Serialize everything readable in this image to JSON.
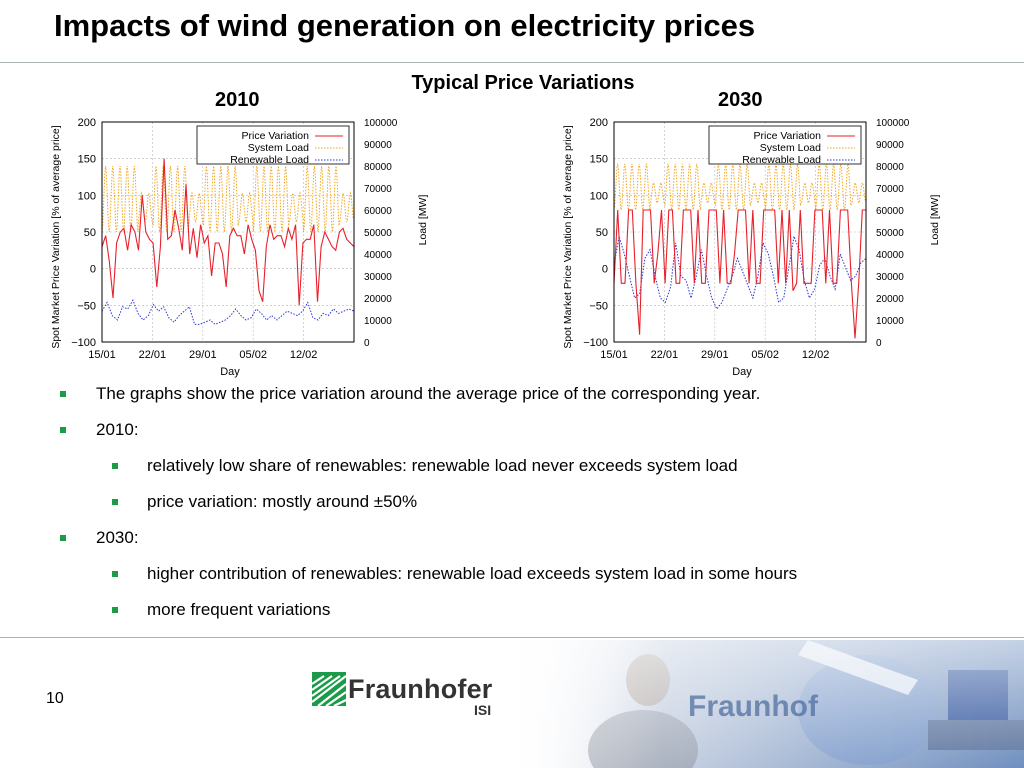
{
  "slide": {
    "title": "Impacts of wind generation on electricity prices",
    "figure_heading": "Typical Price Variations",
    "page_number": "10"
  },
  "logo": {
    "name": "Fraunhofer",
    "sub": "ISI"
  },
  "photo": {
    "overlay_word": "Fraunhof"
  },
  "bullets": [
    {
      "level": 1,
      "text": "The graphs show the price variation around the average price of the corresponding year."
    },
    {
      "level": 1,
      "text": "2010:"
    },
    {
      "level": 2,
      "text": "relatively low share of renewables: renewable load never exceeds system load"
    },
    {
      "level": 2,
      "text": "price variation: mostly around ±50%"
    },
    {
      "level": 1,
      "text": "2030:"
    },
    {
      "level": 2,
      "text": "higher contribution of renewables: renewable load exceeds system load in some hours"
    },
    {
      "level": 2,
      "text": "more frequent variations"
    }
  ],
  "colors": {
    "price": "#e8202a",
    "system_load": "#f2a51c",
    "renewable": "#2a35d6",
    "bullet": "#1b9a49",
    "logo": "#1b9a49"
  },
  "chart_data": [
    {
      "type": "line",
      "title": "2010",
      "xlabel": "Day",
      "ylabel": "Spot Market Price Variation [% of average price]",
      "y2label": "Load [MW]",
      "x_ticks": [
        "15/01",
        "22/01",
        "29/01",
        "05/02",
        "12/02"
      ],
      "x_range_days": [
        0,
        35
      ],
      "ylim": [
        -100,
        200
      ],
      "y_ticks": [
        "200",
        "150",
        "100",
        "50",
        "0",
        "−50",
        "−100"
      ],
      "y2lim": [
        0,
        100000
      ],
      "y2_ticks": [
        "100000",
        "90000",
        "80000",
        "70000",
        "60000",
        "50000",
        "40000",
        "30000",
        "20000",
        "10000",
        "0"
      ],
      "legend_position": "top-right",
      "series": [
        {
          "name": "Price Variation",
          "axis": "left",
          "style": "solid",
          "key": "price",
          "values": [
            30,
            45,
            10,
            -40,
            35,
            50,
            55,
            25,
            60,
            50,
            25,
            100,
            50,
            40,
            35,
            -25,
            30,
            150,
            40,
            45,
            80,
            55,
            25,
            115,
            20,
            55,
            15,
            60,
            35,
            45,
            -10,
            35,
            35,
            20,
            -25,
            45,
            55,
            45,
            45,
            20,
            60,
            40,
            25,
            -30,
            -45,
            30,
            60,
            40,
            45,
            45,
            30,
            55,
            40,
            60,
            -50,
            35,
            40,
            40,
            60,
            -45,
            30,
            50,
            40,
            30,
            25,
            50,
            55,
            40,
            35,
            30
          ]
        },
        {
          "name": "System Load",
          "axis": "right",
          "style": "dotted",
          "key": "system",
          "load_band_mw": [
            50000,
            80000
          ],
          "days_per_cycle": 1
        },
        {
          "name": "Renewable Load",
          "axis": "right",
          "style": "dotted",
          "key": "renew",
          "values": [
            14000,
            18000,
            12000,
            10000,
            16000,
            15000,
            19000,
            13000,
            10000,
            12000,
            17000,
            14000,
            16000,
            11000,
            9000,
            12000,
            14000,
            16000,
            8000,
            8000,
            9000,
            10000,
            8000,
            9000,
            10000,
            12000,
            15000,
            12000,
            10000,
            11000,
            15000,
            13000,
            10000,
            12000,
            10000,
            12000,
            14000,
            13000,
            12000,
            14000,
            18000,
            11000,
            10000,
            13000,
            12000,
            15000,
            13000,
            14000,
            15000,
            14000
          ]
        }
      ]
    },
    {
      "type": "line",
      "title": "2030",
      "xlabel": "Day",
      "ylabel": "Spot Market Price Variation [% of average price]",
      "y2label": "Load [MW]",
      "x_ticks": [
        "15/01",
        "22/01",
        "29/01",
        "05/02",
        "12/02"
      ],
      "x_range_days": [
        0,
        35
      ],
      "ylim": [
        -100,
        200
      ],
      "y_ticks": [
        "200",
        "150",
        "100",
        "50",
        "0",
        "−50",
        "−100"
      ],
      "y2lim": [
        0,
        100000
      ],
      "y2_ticks": [
        "100000",
        "90000",
        "80000",
        "70000",
        "60000",
        "50000",
        "40000",
        "30000",
        "20000",
        "10000",
        "0"
      ],
      "legend_position": "top-right",
      "series": [
        {
          "name": "Price Variation",
          "axis": "left",
          "style": "solid",
          "key": "price",
          "values": [
            -20,
            80,
            -20,
            -20,
            80,
            80,
            -20,
            -90,
            80,
            80,
            80,
            -20,
            20,
            80,
            -20,
            80,
            80,
            -20,
            -20,
            80,
            80,
            80,
            -20,
            80,
            -20,
            -20,
            80,
            80,
            80,
            -20,
            80,
            -20,
            -20,
            20,
            80,
            80,
            80,
            -20,
            80,
            -20,
            -20,
            80,
            80,
            80,
            80,
            -20,
            80,
            -20,
            80,
            -30,
            -20,
            80,
            -20,
            -20,
            -20,
            80,
            80,
            80,
            -20,
            80,
            -20,
            -20,
            80,
            80,
            80,
            -20,
            -95,
            -20,
            80,
            80
          ]
        },
        {
          "name": "System Load",
          "axis": "right",
          "style": "dotted",
          "key": "system",
          "load_band_mw": [
            60000,
            81000
          ],
          "days_per_cycle": 1
        },
        {
          "name": "Renewable Load",
          "axis": "right",
          "style": "dotted",
          "key": "renew",
          "values": [
            35000,
            48000,
            40000,
            30000,
            20000,
            22000,
            38000,
            42000,
            30000,
            20000,
            18000,
            25000,
            45000,
            30000,
            28000,
            20000,
            30000,
            42000,
            30000,
            20000,
            15000,
            18000,
            24000,
            30000,
            38000,
            32000,
            26000,
            20000,
            30000,
            45000,
            40000,
            30000,
            18000,
            20000,
            34000,
            48000,
            42000,
            28000,
            20000,
            24000,
            35000,
            38000,
            30000,
            24000,
            40000,
            34000,
            28000,
            30000,
            36000,
            38000
          ]
        }
      ]
    }
  ]
}
